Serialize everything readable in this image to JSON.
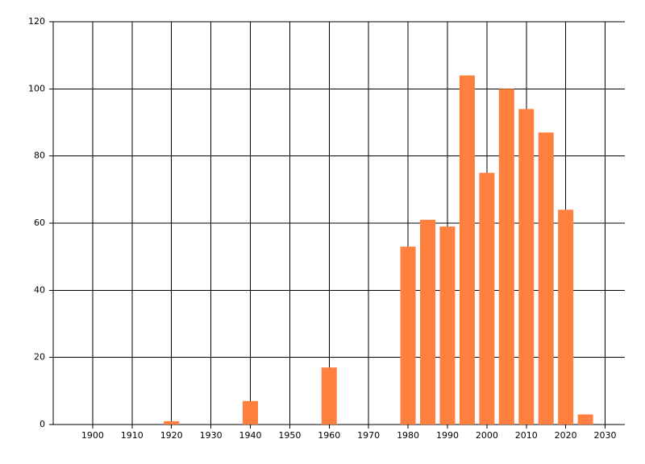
{
  "chart_data": {
    "type": "bar",
    "x": [
      1920,
      1940,
      1960,
      1980,
      1985,
      1990,
      1995,
      2000,
      2005,
      2010,
      2015,
      2020,
      2025
    ],
    "values": [
      1,
      7,
      17,
      53,
      61,
      59,
      104,
      75,
      100,
      94,
      87,
      64,
      3
    ],
    "color": "#ff7f3f",
    "xlim": [
      1890,
      2035
    ],
    "xticks": [
      1900,
      1910,
      1920,
      1930,
      1940,
      1950,
      1960,
      1970,
      1980,
      1990,
      2000,
      2010,
      2020,
      2030
    ],
    "ylim": [
      0,
      120
    ],
    "yticks": [
      0,
      20,
      40,
      60,
      80,
      100,
      120
    ],
    "grid": true
  }
}
